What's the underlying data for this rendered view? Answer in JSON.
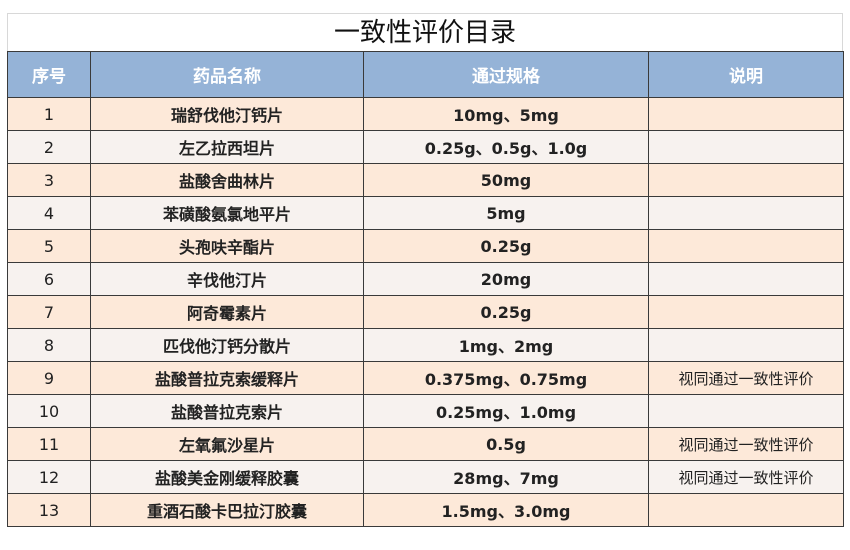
{
  "title": "一致性评价目录",
  "headers": [
    "序号",
    "药品名称",
    "通过规格",
    "说明"
  ],
  "rows": [
    {
      "no": "1",
      "name": "瑞舒伐他汀钙片",
      "spec": "10mg、5mg",
      "note": ""
    },
    {
      "no": "2",
      "name": "左乙拉西坦片",
      "spec": "0.25g、0.5g、1.0g",
      "note": ""
    },
    {
      "no": "3",
      "name": "盐酸舍曲林片",
      "spec": "50mg",
      "note": ""
    },
    {
      "no": "4",
      "name": "苯磺酸氨氯地平片",
      "spec": "5mg",
      "note": ""
    },
    {
      "no": "5",
      "name": "头孢呋辛酯片",
      "spec": "0.25g",
      "note": ""
    },
    {
      "no": "6",
      "name": "辛伐他汀片",
      "spec": "20mg",
      "note": ""
    },
    {
      "no": "7",
      "name": "阿奇霉素片",
      "spec": "0.25g",
      "note": ""
    },
    {
      "no": "8",
      "name": "匹伐他汀钙分散片",
      "spec": "1mg、2mg",
      "note": ""
    },
    {
      "no": "9",
      "name": "盐酸普拉克索缓释片",
      "spec": "0.375mg、0.75mg",
      "note": "视同通过一致性评价"
    },
    {
      "no": "10",
      "name": "盐酸普拉克索片",
      "spec": "0.25mg、1.0mg",
      "note": ""
    },
    {
      "no": "11",
      "name": "左氧氟沙星片",
      "spec": "0.5g",
      "note": "视同通过一致性评价"
    },
    {
      "no": "12",
      "name": "盐酸美金刚缓释胶囊",
      "spec": "28mg、7mg",
      "note": "视同通过一致性评价"
    },
    {
      "no": "13",
      "name": "重酒石酸卡巴拉汀胶囊",
      "spec": "1.5mg、3.0mg",
      "note": ""
    }
  ],
  "colors": {
    "header": "#95b3d7",
    "row_odd": "#fde9d9",
    "row_even": "#f7f2ef"
  }
}
